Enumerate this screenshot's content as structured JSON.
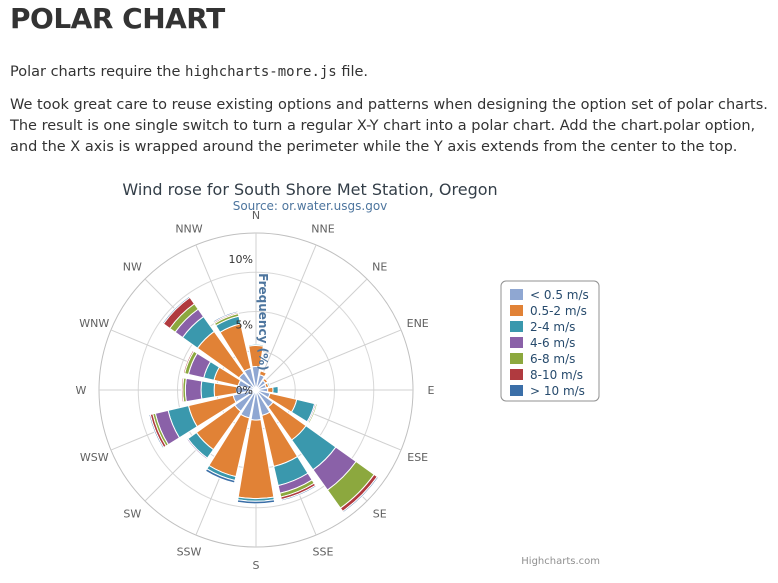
{
  "page": {
    "title": "POLAR CHART",
    "intro_before": "Polar charts require the ",
    "intro_code": "highcharts-more.js",
    "intro_after": " file.",
    "description": "We took great care to reuse existing options and patterns when designing the option set of polar charts. The result is one single switch to turn a regular X-Y chart into a polar chart. Add the chart.polar option, and the X axis is wrapped around the perimeter while the Y axis extends from the center to the top."
  },
  "chart_data": {
    "type": "bar",
    "polar": true,
    "stacked": true,
    "title": "Wind rose for South Shore Met Station, Oregon",
    "subtitle": "Source: or.water.usgs.gov",
    "ylabel": "Frequency (%)",
    "ytick_labels": [
      "0%",
      "5%",
      "10%"
    ],
    "ylim": [
      0,
      12
    ],
    "credits": "Highcharts.com",
    "legend_position": "right",
    "categories": [
      "N",
      "NNE",
      "NE",
      "ENE",
      "E",
      "ESE",
      "SE",
      "SSE",
      "S",
      "SSW",
      "SW",
      "WSW",
      "W",
      "WNW",
      "NW",
      "NNW"
    ],
    "series": [
      {
        "name": "< 0.5 m/s",
        "color": "#8fa7d2",
        "values": [
          1.8,
          1.2,
          0.9,
          0.8,
          0.9,
          1.1,
          1.6,
          2.0,
          2.3,
          2.2,
          2.0,
          1.8,
          1.5,
          1.4,
          1.6,
          1.7
        ]
      },
      {
        "name": "0.5-2 m/s",
        "color": "#e18236",
        "values": [
          1.6,
          0.3,
          0.2,
          0.2,
          0.4,
          2.1,
          3.1,
          4.0,
          6.0,
          4.6,
          3.6,
          3.5,
          1.7,
          1.9,
          3.9,
          3.5
        ]
      },
      {
        "name": "2-4 m/s",
        "color": "#3a98ad",
        "values": [
          0.1,
          0.0,
          0.0,
          0.1,
          0.4,
          1.4,
          2.8,
          1.5,
          0.2,
          0.3,
          0.8,
          1.6,
          1.0,
          0.8,
          1.4,
          0.6
        ]
      },
      {
        "name": "4-6 m/s",
        "color": "#8a61a8",
        "values": [
          0.0,
          0.0,
          0.0,
          0.0,
          0.0,
          0.1,
          1.9,
          0.6,
          0.0,
          0.0,
          0.1,
          1.0,
          1.2,
          1.2,
          0.7,
          0.0
        ]
      },
      {
        "name": "6-8 m/s",
        "color": "#8ca83e",
        "values": [
          0.0,
          0.0,
          0.0,
          0.0,
          0.0,
          0.1,
          1.7,
          0.3,
          0.0,
          0.0,
          0.0,
          0.2,
          0.2,
          0.3,
          0.5,
          0.2
        ]
      },
      {
        "name": "8-10 m/s",
        "color": "#b03a3f",
        "values": [
          0.0,
          0.0,
          0.0,
          0.0,
          0.0,
          0.0,
          0.3,
          0.2,
          0.0,
          0.0,
          0.0,
          0.2,
          0.1,
          0.1,
          0.6,
          0.1
        ]
      },
      {
        "name": "> 10 m/s",
        "color": "#3b6fa8",
        "values": [
          0.0,
          0.0,
          0.0,
          0.0,
          0.0,
          0.0,
          0.1,
          0.1,
          0.2,
          0.2,
          0.0,
          0.1,
          0.0,
          0.0,
          0.1,
          0.1
        ]
      }
    ]
  }
}
